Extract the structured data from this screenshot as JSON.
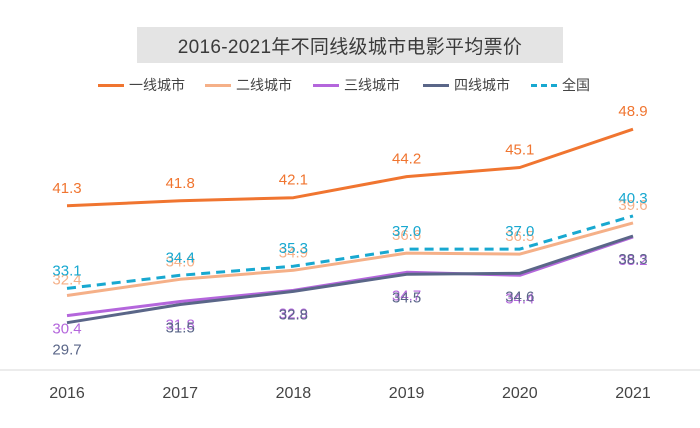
{
  "chart_data": {
    "type": "line",
    "title": "2016-2021年不同线级城市电影平均票价",
    "categories": [
      "2016",
      "2017",
      "2018",
      "2019",
      "2020",
      "2021"
    ],
    "xlabel": "",
    "ylabel": "",
    "ylim": [
      25,
      52
    ],
    "grid": false,
    "legend_position": "top",
    "series": [
      {
        "name": "一线城市",
        "color": "#f07530",
        "dashed": false,
        "label_pos": "above",
        "values": [
          41.3,
          41.8,
          42.1,
          44.2,
          45.1,
          48.9
        ]
      },
      {
        "name": "二线城市",
        "color": "#f5b088",
        "dashed": false,
        "label_pos": "above",
        "values": [
          32.4,
          34.0,
          34.9,
          36.6,
          36.5,
          39.6
        ]
      },
      {
        "name": "三线城市",
        "color": "#b466dc",
        "dashed": false,
        "label_pos": "below",
        "values": [
          30.4,
          31.8,
          32.9,
          34.7,
          34.4,
          38.2
        ]
      },
      {
        "name": "四线城市",
        "color": "#5a6688",
        "dashed": false,
        "label_pos": "below",
        "values": [
          29.7,
          31.5,
          32.8,
          34.5,
          34.6,
          38.3
        ]
      },
      {
        "name": "全国",
        "color": "#18a8d0",
        "dashed": true,
        "label_pos": "above",
        "values": [
          33.1,
          34.4,
          35.3,
          37.0,
          37.0,
          40.3
        ]
      }
    ]
  }
}
